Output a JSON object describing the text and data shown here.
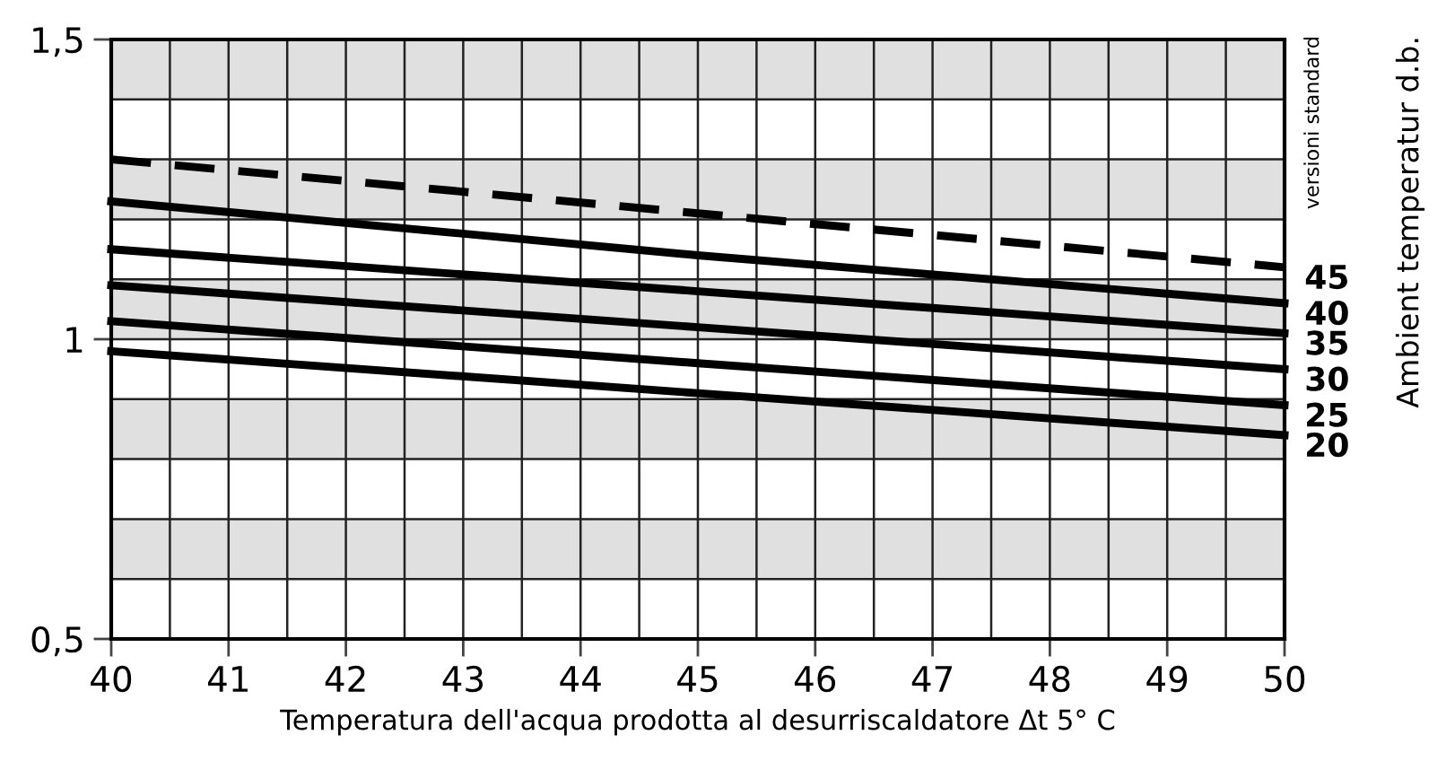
{
  "chart_data": {
    "type": "line",
    "xlabel": "Temperatura dell'acqua prodotta al desurriscaldatore Δt 5° C",
    "annotations": [
      "versioni standard",
      "Ambient temperatur d.b."
    ],
    "x": [
      40,
      45,
      50
    ],
    "series": [
      {
        "name": "45",
        "color": "#000000",
        "line_style": "dashed",
        "values": [
          1.3,
          1.21,
          1.12
        ]
      },
      {
        "name": "40",
        "color": "#000000",
        "values": [
          1.23,
          1.14,
          1.06
        ]
      },
      {
        "name": "35",
        "color": "#000000",
        "values": [
          1.15,
          1.08,
          1.01
        ]
      },
      {
        "name": "30",
        "color": "#000000",
        "values": [
          1.09,
          1.02,
          0.95
        ]
      },
      {
        "name": "25",
        "color": "#000000",
        "values": [
          1.03,
          0.96,
          0.89
        ]
      },
      {
        "name": "20",
        "color": "#000000",
        "values": [
          0.98,
          0.91,
          0.84
        ]
      }
    ],
    "xlim": [
      40,
      50
    ],
    "ylim": [
      0.5,
      1.5
    ],
    "xticks": [
      40,
      {
        "value": 40.5,
        "label": null
      },
      41,
      {
        "value": 41.5,
        "label": null
      },
      42,
      {
        "value": 42.5,
        "label": null
      },
      43,
      {
        "value": 43.5,
        "label": null
      },
      44,
      {
        "value": 44.5,
        "label": null
      },
      45,
      {
        "value": 45.5,
        "label": null
      },
      46,
      {
        "value": 46.5,
        "label": null
      },
      47,
      {
        "value": 47.5,
        "label": null
      },
      48,
      {
        "value": 48.5,
        "label": null
      },
      49,
      {
        "value": 49.5,
        "label": null
      },
      50
    ],
    "yticks": [
      {
        "value": 0.5,
        "label": "0,5"
      },
      {
        "value": 0.6,
        "label": null
      },
      {
        "value": 0.7,
        "label": null
      },
      {
        "value": 0.8,
        "label": null
      },
      {
        "value": 0.9,
        "label": null
      },
      1,
      {
        "value": 1.1,
        "label": null
      },
      {
        "value": 1.2,
        "label": null
      },
      {
        "value": 1.3,
        "label": null
      },
      {
        "value": 1.4,
        "label": null
      },
      {
        "value": 1.5,
        "label": "1,5"
      }
    ],
    "bands": [
      {
        "axis": "y",
        "from": 1.4,
        "to": 1.5,
        "color": "#e0e0e0"
      },
      {
        "axis": "y",
        "from": 1.2,
        "to": 1.3,
        "color": "#e0e0e0"
      },
      {
        "axis": "y",
        "from": 1.0,
        "to": 1.1,
        "color": "#e0e0e0"
      },
      {
        "axis": "y",
        "from": 0.8,
        "to": 0.9,
        "color": "#e0e0e0"
      },
      {
        "axis": "y",
        "from": 0.6,
        "to": 0.7,
        "color": "#e0e0e0"
      }
    ],
    "grid": true,
    "marker": "none",
    "line_style": "solid"
  }
}
